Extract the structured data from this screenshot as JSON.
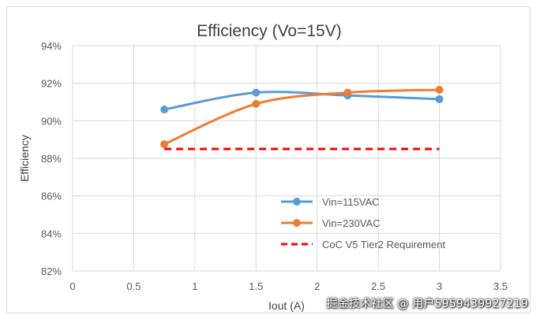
{
  "chart_data": {
    "type": "line",
    "title": "Efficiency (Vo=15V)",
    "xlabel": "Iout (A)",
    "ylabel": "Efficiency",
    "xlim": [
      0,
      3.5
    ],
    "ylim": [
      82,
      94
    ],
    "x_ticks": [
      "0",
      "0.5",
      "1",
      "1.5",
      "2",
      "2.5",
      "3",
      "3.5"
    ],
    "x_tick_values": [
      0,
      0.5,
      1,
      1.5,
      2,
      2.5,
      3,
      3.5
    ],
    "y_ticks": [
      "82%",
      "84%",
      "86%",
      "88%",
      "90%",
      "92%",
      "94%"
    ],
    "y_tick_values": [
      82,
      84,
      86,
      88,
      90,
      92,
      94
    ],
    "grid": true,
    "legend_position": "bottom-right",
    "series": [
      {
        "name": "Vin=115VAC",
        "color": "#5b9bd5",
        "style": "line-marker",
        "x": [
          0.75,
          1.5,
          2.25,
          3
        ],
        "values": [
          90.6,
          91.5,
          91.35,
          91.15
        ]
      },
      {
        "name": "Vin=230VAC",
        "color": "#ed7d31",
        "style": "line-marker",
        "x": [
          0.75,
          1.5,
          2.25,
          3
        ],
        "values": [
          88.75,
          90.9,
          91.5,
          91.65
        ]
      },
      {
        "name": "CoC V5 Tier2 Requirement",
        "color": "#ff0000",
        "style": "dashed",
        "x": [
          0.75,
          3
        ],
        "values": [
          88.5,
          88.5
        ]
      }
    ]
  },
  "watermark": "掘金技术社区 @ 用户5959439927219"
}
